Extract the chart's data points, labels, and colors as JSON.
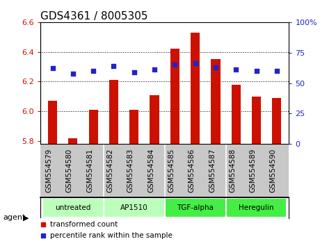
{
  "title": "GDS4361 / 8005305",
  "samples": [
    "GSM554579",
    "GSM554580",
    "GSM554581",
    "GSM554582",
    "GSM554583",
    "GSM554584",
    "GSM554585",
    "GSM554586",
    "GSM554587",
    "GSM554588",
    "GSM554589",
    "GSM554590"
  ],
  "red_values": [
    6.07,
    5.82,
    6.01,
    6.21,
    6.01,
    6.11,
    6.42,
    6.53,
    6.35,
    6.18,
    6.1,
    6.09
  ],
  "blue_pct": [
    62,
    58,
    60,
    64,
    59,
    61,
    65,
    66,
    63,
    61,
    60,
    60
  ],
  "ylim_left": [
    5.78,
    6.6
  ],
  "ylim_right": [
    0,
    100
  ],
  "yticks_left": [
    5.8,
    6.0,
    6.2,
    6.4,
    6.6
  ],
  "yticks_right": [
    0,
    25,
    50,
    75,
    100
  ],
  "ytick_labels_right": [
    "0",
    "25",
    "50",
    "75",
    "100%"
  ],
  "groups": [
    {
      "label": "untreated",
      "start": 0,
      "end": 3,
      "color": "#bbffbb"
    },
    {
      "label": "AP1510",
      "start": 3,
      "end": 6,
      "color": "#bbffbb"
    },
    {
      "label": "TGF-alpha",
      "start": 6,
      "end": 9,
      "color": "#44ee44"
    },
    {
      "label": "Heregulin",
      "start": 9,
      "end": 12,
      "color": "#44ee44"
    }
  ],
  "bar_color": "#cc1100",
  "dot_color": "#2222cc",
  "bar_bottom": 5.78,
  "agent_label": "agent",
  "legend_red": "transformed count",
  "legend_blue": "percentile rank within the sample",
  "background_color": "#ffffff",
  "plot_bg": "#ffffff",
  "tick_color_left": "#cc1100",
  "tick_color_right": "#2222cc",
  "title_fontsize": 11,
  "axis_fontsize": 8,
  "label_fontsize": 7.5
}
